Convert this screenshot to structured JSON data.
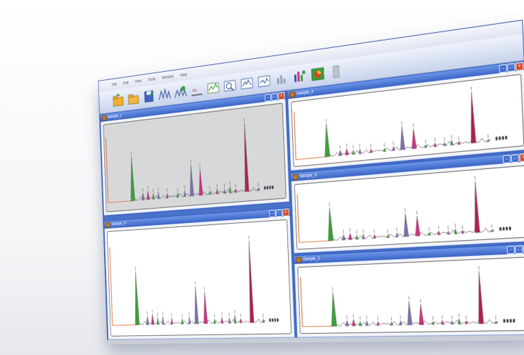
{
  "menu": {
    "items": [
      "File",
      "Edit",
      "View",
      "Tools",
      "Window",
      "Help"
    ]
  },
  "toolbar": {
    "buttons": [
      "open-icon",
      "folder-icon",
      "save-icon",
      "peaks-icon",
      "overlay-icon",
      "axis-icon",
      "chart-icon",
      "compare-icon",
      "zoom-in-icon",
      "zoom-out-icon",
      "bar-chart-icon",
      "stats-icon",
      "pie-chart-icon",
      "settings-icon"
    ]
  },
  "windows": {
    "sample_1": {
      "title": "Sample_1"
    },
    "sample_5": {
      "title": "Sample_5"
    },
    "sample_4": {
      "title": "Sample_4"
    },
    "sample_3": {
      "title": "Sample_3"
    },
    "sample_2": {
      "title": "Sample_2"
    }
  },
  "colors": {
    "mdi_background": "#4a72c8",
    "peak_green": "#3aa03a",
    "peak_purple": "#7f6db0",
    "peak_magenta": "#d0307e",
    "peak_crimson": "#b02050",
    "baseline_orange": "#e06a30"
  }
}
